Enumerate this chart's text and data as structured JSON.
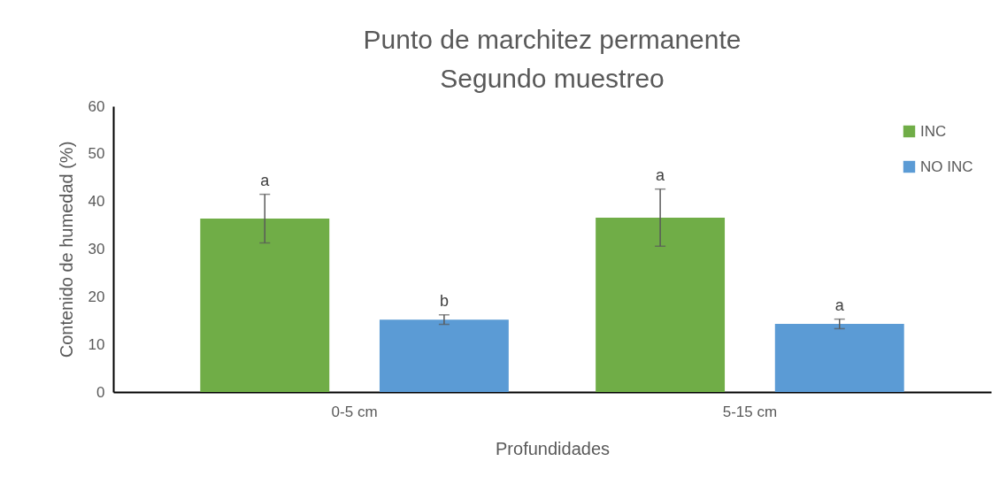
{
  "chart_data": {
    "type": "bar",
    "title": "Punto de marchitez permanente\nSegundo muestreo",
    "xlabel": "Profundidades",
    "ylabel": "Contenido de humedad (%)",
    "categories": [
      "0-5 cm",
      "5-15 cm"
    ],
    "series": [
      {
        "name": "INC",
        "color": "#70ad47",
        "values": [
          36.4,
          36.6
        ],
        "errors": [
          5.1,
          6.0
        ],
        "value_labels": [
          "a",
          "a"
        ]
      },
      {
        "name": "NO INC",
        "color": "#5b9bd5",
        "values": [
          15.2,
          14.3
        ],
        "errors": [
          1.0,
          1.0
        ],
        "value_labels": [
          "b",
          "a"
        ]
      }
    ],
    "ylim": [
      0,
      60
    ],
    "yticks": [
      0,
      10,
      20,
      30,
      40,
      50,
      60
    ],
    "grid": false,
    "legend": "top right"
  }
}
